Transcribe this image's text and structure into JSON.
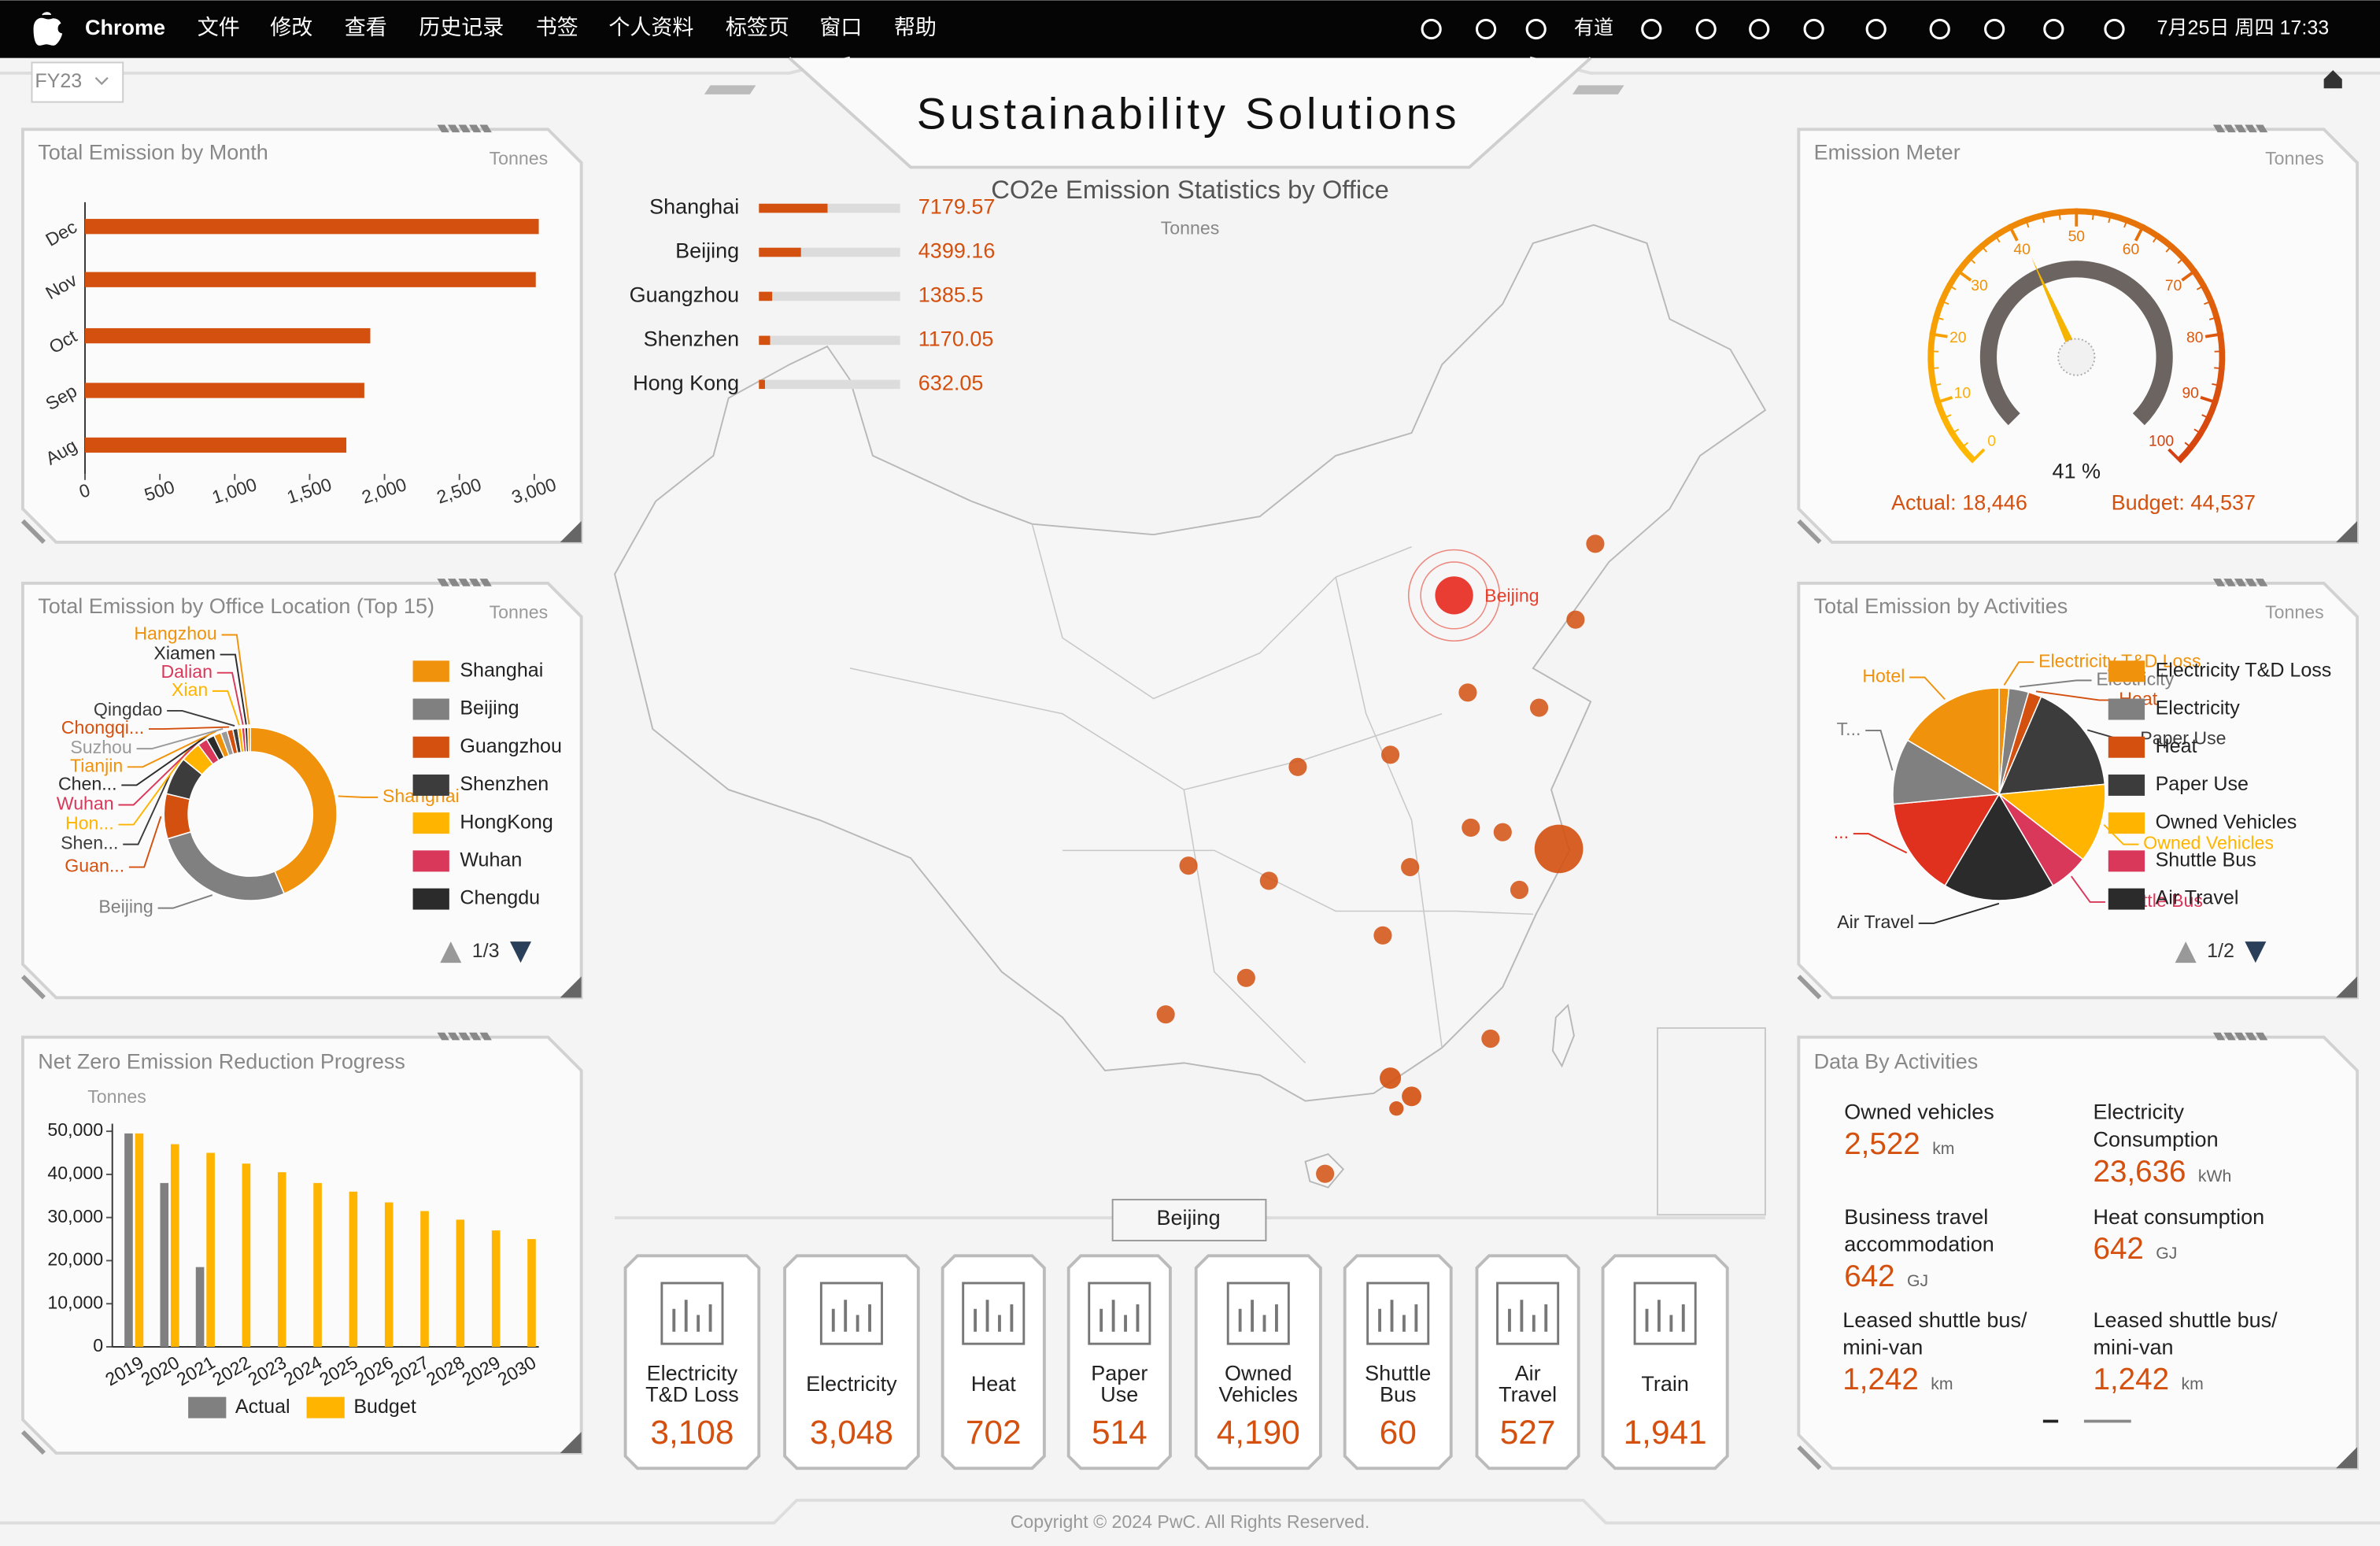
{
  "menu_bar": {
    "items": [
      "Chrome",
      "文件",
      "修改",
      "查看",
      "历史记录",
      "书签",
      "个人资料",
      "标签页",
      "窗口",
      "帮助"
    ],
    "status": [
      "有道",
      "7月25日 周四 17:33"
    ]
  },
  "header": {
    "fiscal_year": "FY23",
    "title": "Sustainability Solutions"
  },
  "chart_data": [
    {
      "type": "bar",
      "orientation": "horizontal",
      "title": "Total Emission by Month",
      "unit": "Tonnes",
      "categories": [
        "Dec",
        "Nov",
        "Oct",
        "Sep",
        "Aug"
      ],
      "values": [
        3030,
        3010,
        1905,
        1865,
        1745
      ],
      "color": "#d4500f",
      "xlim": [
        0,
        3000
      ],
      "xticks": [
        0,
        500,
        {
          "value": 1000,
          "label": "1,000"
        },
        {
          "value": 1500,
          "label": "1,500"
        },
        {
          "value": 2000,
          "label": "2,000"
        },
        {
          "value": 2500,
          "label": "2,500"
        },
        {
          "value": 3000,
          "label": "3,000"
        }
      ]
    },
    {
      "type": "donut",
      "title": "Total Emission by Office Location (Top 15)",
      "unit": "Tonnes",
      "categories": [
        "Shanghai",
        "Beijing",
        "Guangzhou",
        "Shenzhen",
        "HongKong",
        "Wuhan",
        "Chengdu",
        "Tianjin",
        "Suzhou",
        "Chongqi...",
        "Qingdao",
        "Xian",
        "Dalian",
        "Xiamen",
        "Hangzhou"
      ],
      "slice_labels": [
        "Shanghai",
        "Beijing",
        "Guan...",
        "Shen...",
        "Hon...",
        "Wuhan",
        "Chen...",
        "Tianjin",
        "Suzhou",
        "Chongqi...",
        "Qingdao",
        "Xian",
        "Dalian",
        "Xiamen",
        "Hangzhou"
      ],
      "values": [
        7179.57,
        4399.16,
        1385.5,
        1170.05,
        632.05,
        300,
        250,
        220,
        200,
        180,
        150,
        120,
        100,
        90,
        80
      ],
      "colors": [
        "#f0920b",
        "#808080",
        "#d4500f",
        "#3c3c3c",
        "#ffb400",
        "#d9385a",
        "#2b2b2b",
        "#f0920b",
        "#9a9a9a",
        "#d4500f",
        "#3c3c3c",
        "#ffb400",
        "#d9385a",
        "#2b2b2b",
        "#f0920b"
      ],
      "legend_page": "1/3"
    },
    {
      "type": "bar",
      "title": "Net Zero Emission Reduction Progress",
      "y_label": "Tonnes",
      "categories": [
        "2019",
        "2020",
        "2021",
        "2022",
        "2023",
        "2024",
        "2025",
        "2026",
        "2027",
        "2028",
        "2029",
        "2030"
      ],
      "series": [
        {
          "name": "Actual",
          "color": "#808080",
          "values": [
            49500,
            38000,
            18500,
            null,
            null,
            null,
            null,
            null,
            null,
            null,
            null,
            null
          ]
        },
        {
          "name": "Budget",
          "color": "#ffb400",
          "values": [
            49500,
            47000,
            45000,
            42500,
            40500,
            38000,
            36000,
            33500,
            31500,
            29500,
            27000,
            25000
          ]
        }
      ],
      "ylim": [
        0,
        50000
      ],
      "yticks": [
        0,
        {
          "value": 10000,
          "label": "10,000"
        },
        {
          "value": 20000,
          "label": "20,000"
        },
        {
          "value": 30000,
          "label": "30,000"
        },
        {
          "value": 40000,
          "label": "40,000"
        },
        {
          "value": 50000,
          "label": "50,000"
        }
      ]
    },
    {
      "type": "gauge",
      "title": "Emission Meter",
      "unit": "Tonnes",
      "value": 41,
      "value_label": "41 %",
      "ticks": [
        0,
        10,
        20,
        30,
        40,
        50,
        60,
        70,
        80,
        90,
        100
      ],
      "actual": {
        "label": "Actual:",
        "value": 18446,
        "value_label": "18,446"
      },
      "budget": {
        "label": "Budget:",
        "value": 44537,
        "value_label": "44,537"
      }
    },
    {
      "type": "pie",
      "title": "Total Emission by Activities",
      "unit": "Tonnes",
      "categories": [
        "Electricity T&D Loss",
        "Electricity",
        "Heat",
        "Paper Use",
        "Owned Vehicles",
        "Shuttle Bus",
        "Air Travel",
        "...",
        "T...",
        "Hotel"
      ],
      "values": [
        1.5,
        3,
        2,
        17,
        12,
        6,
        17,
        15,
        10,
        16.5
      ],
      "colors": [
        "#f0920b",
        "#808080",
        "#d4500f",
        "#3c3c3c",
        "#ffb400",
        "#d9385a",
        "#2b2b2b",
        "#e0301e",
        "#808080",
        "#f0920b"
      ],
      "legend_page": "1/2"
    },
    {
      "type": "map",
      "title": "CO2e Emission Statistics by Office",
      "unit": "Tonnes",
      "categories": [
        "Shanghai",
        "Beijing",
        "Guangzhou",
        "Shenzhen",
        "Hong Kong"
      ],
      "values": [
        7179.57,
        4399.16,
        1385.5,
        1170.05,
        632.05
      ],
      "color": "#d4500f"
    }
  ],
  "activity_tiles": {
    "location": "Beijing",
    "items": [
      {
        "label": "Electricity T&D Loss",
        "value": 3108,
        "value_label": "3,108"
      },
      {
        "label": "Electricity",
        "value": 3048,
        "value_label": "3,048"
      },
      {
        "label": "Heat",
        "value": 702
      },
      {
        "label": "Paper Use",
        "value": 514
      },
      {
        "label": "Owned Vehicles",
        "value": 4190,
        "value_label": "4,190"
      },
      {
        "label": "Shuttle Bus",
        "value": 60
      },
      {
        "label": "Air Travel",
        "value": 527
      },
      {
        "label": "Train",
        "value": 1941,
        "value_label": "1,941"
      }
    ]
  },
  "data_by_activities": {
    "title": "Data By Activities",
    "items": [
      {
        "label": "Owned vehicles",
        "value": 2522,
        "value_label": "2,522",
        "unit": "km"
      },
      {
        "label": "Electricity Consumption",
        "value": 23636,
        "value_label": "23,636",
        "unit": "kWh"
      },
      {
        "label": "Business travel accommodation",
        "value": 642,
        "unit": "GJ"
      },
      {
        "label": "Heat consumption",
        "value": 642,
        "unit": "GJ"
      },
      {
        "label": "Leased shuttle bus/ mini-van",
        "value": 1242,
        "value_label": "1,242",
        "unit": "km"
      },
      {
        "label": "Leased shuttle bus/ mini-van",
        "value": 1242,
        "value_label": "1,242",
        "unit": "km"
      }
    ]
  },
  "footer": "Copyright © 2024 PwC. All Rights Reserved."
}
